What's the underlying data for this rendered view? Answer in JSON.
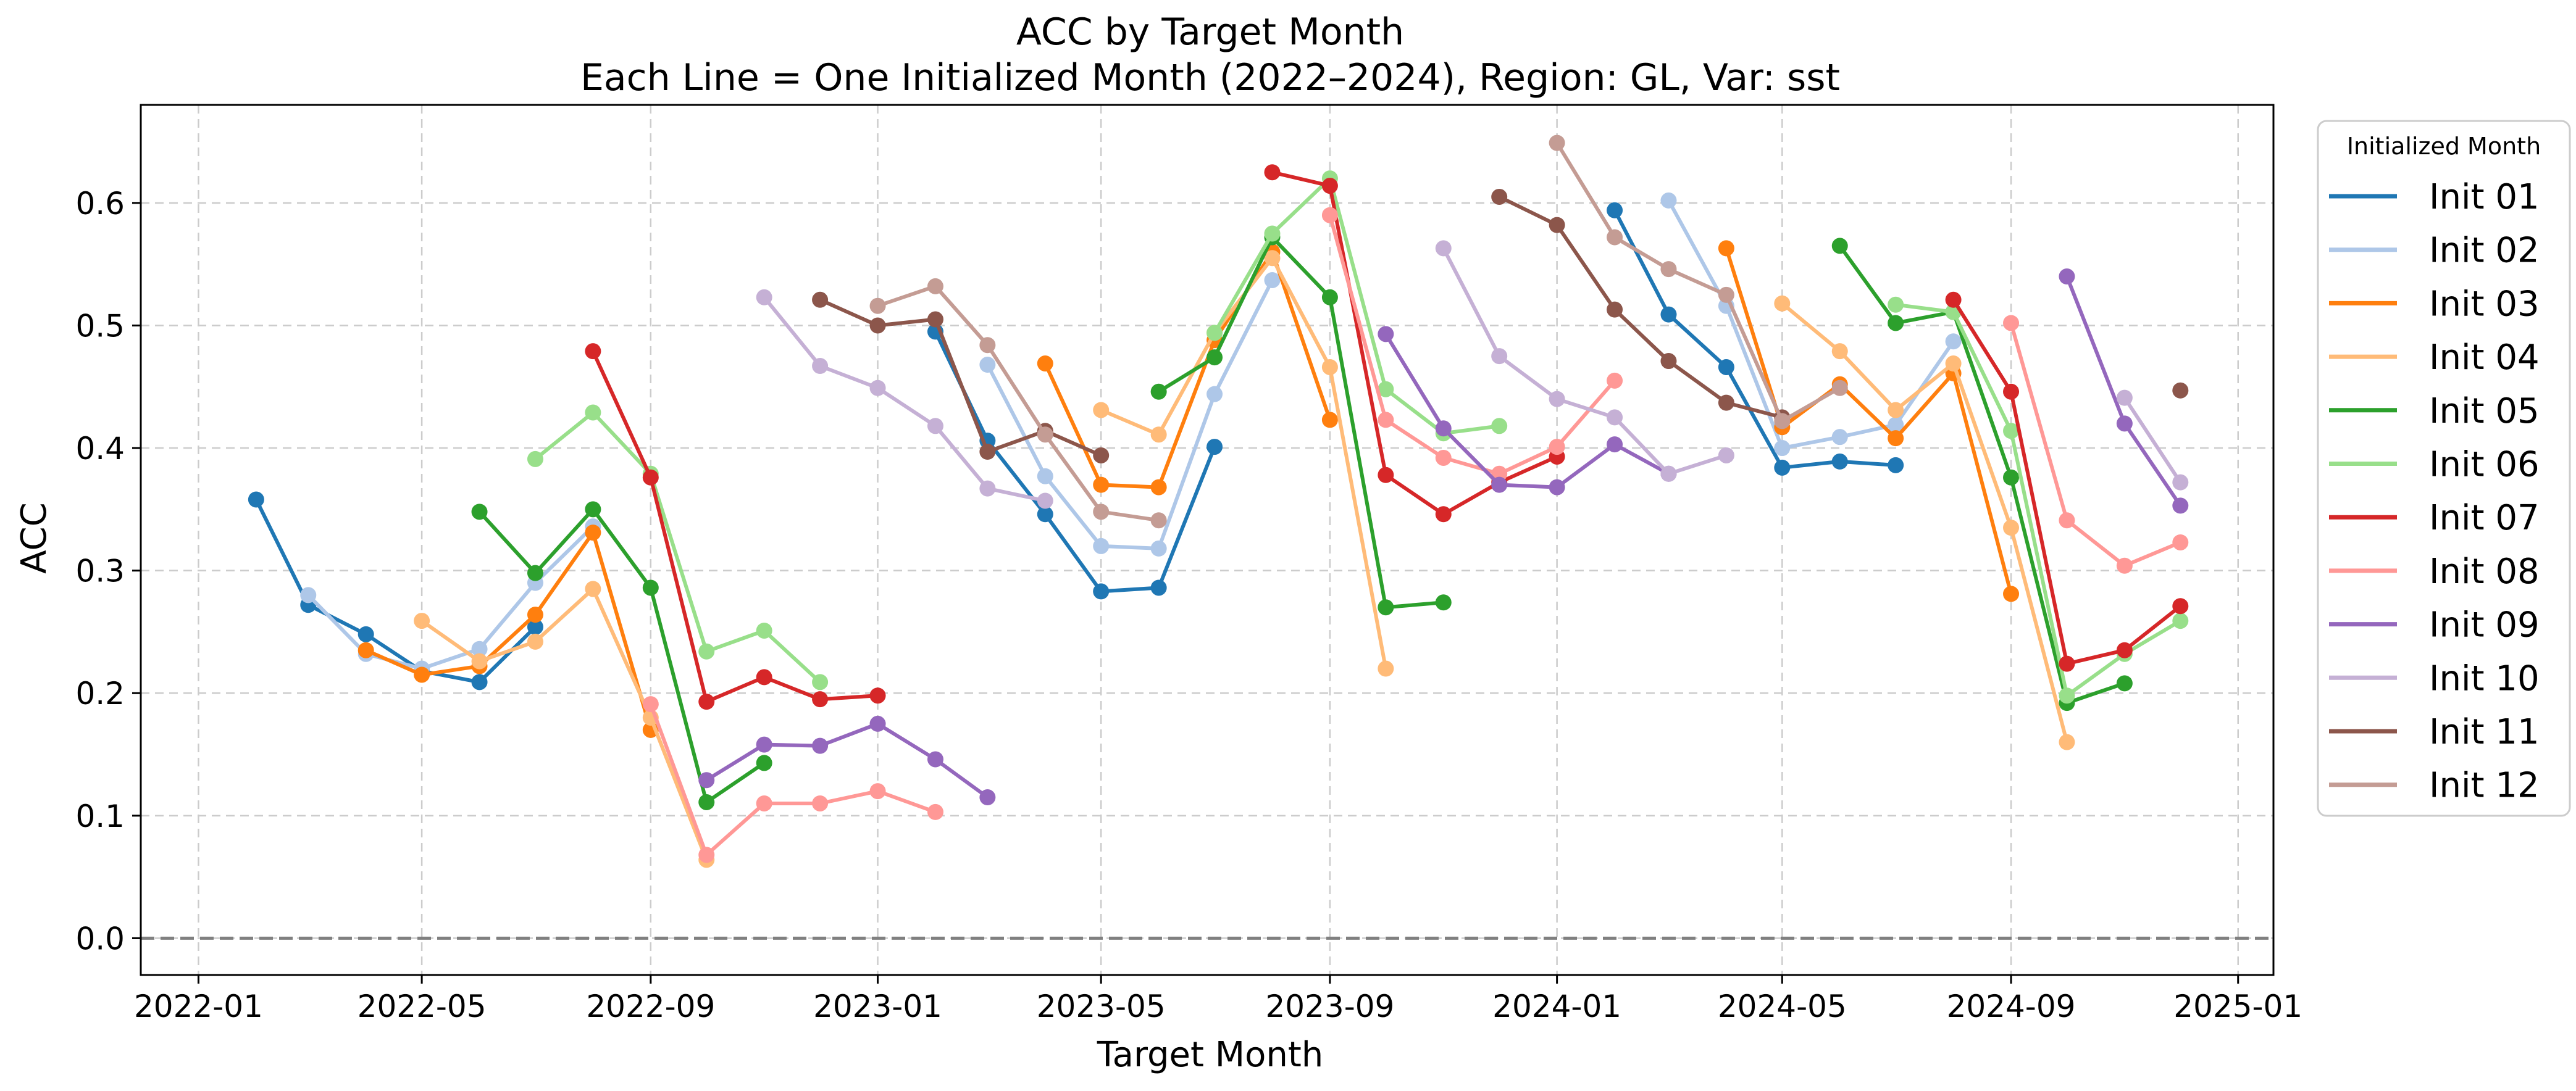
{
  "chart_data": {
    "type": "line",
    "title": "ACC by Target Month",
    "subtitle": "Each Line = One Initialized Month (2022–2024), Region: GL, Var: sst",
    "xlabel": "Target Month",
    "ylabel": "ACC",
    "xlim": [
      "2021-12-01",
      "2025-01-20"
    ],
    "ylim": [
      -0.03,
      0.68
    ],
    "xticks": [
      "2022-01",
      "2022-05",
      "2022-09",
      "2023-01",
      "2023-05",
      "2023-09",
      "2024-01",
      "2024-05",
      "2024-09",
      "2025-01"
    ],
    "yticks": [
      "0.0",
      "0.1",
      "0.2",
      "0.3",
      "0.4",
      "0.5",
      "0.6"
    ],
    "grid": true,
    "zero_line": true,
    "legend_title": "Initialized Month",
    "legend_position": "outside-right",
    "series": [
      {
        "name": "Init 01",
        "color": "#1f77b4",
        "segments": [
          {
            "x": [
              "2022-02",
              "2022-03",
              "2022-04",
              "2022-05",
              "2022-06",
              "2022-07"
            ],
            "y": [
              0.358,
              0.272,
              0.248,
              0.218,
              0.209,
              0.254
            ]
          },
          {
            "x": [
              "2023-02",
              "2023-03",
              "2023-04",
              "2023-05",
              "2023-06",
              "2023-07"
            ],
            "y": [
              0.495,
              0.406,
              0.346,
              0.283,
              0.286,
              0.401
            ]
          },
          {
            "x": [
              "2024-02",
              "2024-03",
              "2024-04",
              "2024-05",
              "2024-06",
              "2024-07"
            ],
            "y": [
              0.594,
              0.509,
              0.466,
              0.384,
              0.389,
              0.386
            ]
          }
        ]
      },
      {
        "name": "Init 02",
        "color": "#aec7e8",
        "segments": [
          {
            "x": [
              "2022-03",
              "2022-04",
              "2022-05",
              "2022-06",
              "2022-07",
              "2022-08"
            ],
            "y": [
              0.28,
              0.232,
              0.22,
              0.236,
              0.29,
              0.336
            ]
          },
          {
            "x": [
              "2023-03",
              "2023-04",
              "2023-05",
              "2023-06",
              "2023-07",
              "2023-08"
            ],
            "y": [
              0.468,
              0.377,
              0.32,
              0.318,
              0.444,
              0.537
            ]
          },
          {
            "x": [
              "2024-03",
              "2024-04",
              "2024-05",
              "2024-06",
              "2024-07",
              "2024-08"
            ],
            "y": [
              0.602,
              0.516,
              0.4,
              0.409,
              0.419,
              0.487
            ]
          }
        ]
      },
      {
        "name": "Init 03",
        "color": "#ff7f0e",
        "segments": [
          {
            "x": [
              "2022-04",
              "2022-05",
              "2022-06",
              "2022-07",
              "2022-08",
              "2022-09"
            ],
            "y": [
              0.235,
              0.215,
              0.222,
              0.264,
              0.331,
              0.17
            ]
          },
          {
            "x": [
              "2023-04",
              "2023-05",
              "2023-06",
              "2023-07",
              "2023-08",
              "2023-09"
            ],
            "y": [
              0.469,
              0.37,
              0.368,
              0.488,
              0.56,
              0.423
            ]
          },
          {
            "x": [
              "2024-04",
              "2024-05",
              "2024-06",
              "2024-07",
              "2024-08",
              "2024-09"
            ],
            "y": [
              0.563,
              0.417,
              0.452,
              0.408,
              0.461,
              0.281
            ]
          }
        ]
      },
      {
        "name": "Init 04",
        "color": "#ffbb78",
        "segments": [
          {
            "x": [
              "2022-05",
              "2022-06",
              "2022-07",
              "2022-08",
              "2022-09",
              "2022-10"
            ],
            "y": [
              0.259,
              0.226,
              0.242,
              0.285,
              0.18,
              0.064
            ]
          },
          {
            "x": [
              "2023-05",
              "2023-06",
              "2023-07",
              "2023-08",
              "2023-09",
              "2023-10"
            ],
            "y": [
              0.431,
              0.411,
              0.494,
              0.555,
              0.466,
              0.22
            ]
          },
          {
            "x": [
              "2024-05",
              "2024-06",
              "2024-07",
              "2024-08",
              "2024-09",
              "2024-10"
            ],
            "y": [
              0.518,
              0.479,
              0.431,
              0.469,
              0.335,
              0.16
            ]
          }
        ]
      },
      {
        "name": "Init 05",
        "color": "#2ca02c",
        "segments": [
          {
            "x": [
              "2022-06",
              "2022-07",
              "2022-08",
              "2022-09",
              "2022-10",
              "2022-11"
            ],
            "y": [
              0.348,
              0.298,
              0.35,
              0.286,
              0.111,
              0.143
            ]
          },
          {
            "x": [
              "2023-06",
              "2023-07",
              "2023-08",
              "2023-09",
              "2023-10",
              "2023-11"
            ],
            "y": [
              0.446,
              0.474,
              0.572,
              0.523,
              0.27,
              0.274
            ]
          },
          {
            "x": [
              "2024-06",
              "2024-07",
              "2024-08",
              "2024-09",
              "2024-10",
              "2024-11"
            ],
            "y": [
              0.565,
              0.502,
              0.511,
              0.376,
              0.192,
              0.208
            ]
          }
        ]
      },
      {
        "name": "Init 06",
        "color": "#98df8a",
        "segments": [
          {
            "x": [
              "2022-07",
              "2022-08",
              "2022-09",
              "2022-10",
              "2022-11",
              "2022-12"
            ],
            "y": [
              0.391,
              0.429,
              0.379,
              0.234,
              0.251,
              0.209
            ]
          },
          {
            "x": [
              "2023-07",
              "2023-08",
              "2023-09",
              "2023-10",
              "2023-11",
              "2023-12"
            ],
            "y": [
              0.494,
              0.575,
              0.62,
              0.448,
              0.412,
              0.418
            ]
          },
          {
            "x": [
              "2024-07",
              "2024-08",
              "2024-09",
              "2024-10",
              "2024-11",
              "2024-12"
            ],
            "y": [
              0.517,
              0.511,
              0.414,
              0.198,
              0.232,
              0.259
            ]
          }
        ]
      },
      {
        "name": "Init 07",
        "color": "#d62728",
        "segments": [
          {
            "x": [
              "2022-08",
              "2022-09",
              "2022-10",
              "2022-11",
              "2022-12",
              "2023-01"
            ],
            "y": [
              0.479,
              0.376,
              0.193,
              0.213,
              0.195,
              0.198
            ]
          },
          {
            "x": [
              "2023-08",
              "2023-09",
              "2023-10",
              "2023-11",
              "2023-12",
              "2024-01"
            ],
            "y": [
              0.625,
              0.614,
              0.378,
              0.346,
              0.372,
              0.393
            ]
          },
          {
            "x": [
              "2024-08",
              "2024-09",
              "2024-10",
              "2024-11",
              "2024-12"
            ],
            "y": [
              0.521,
              0.446,
              0.224,
              0.235,
              0.271
            ]
          }
        ]
      },
      {
        "name": "Init 08",
        "color": "#ff9896",
        "segments": [
          {
            "x": [
              "2022-09",
              "2022-10",
              "2022-11",
              "2022-12",
              "2023-01",
              "2023-02"
            ],
            "y": [
              0.191,
              0.068,
              0.11,
              0.11,
              0.12,
              0.103
            ]
          },
          {
            "x": [
              "2023-09",
              "2023-10",
              "2023-11",
              "2023-12",
              "2024-01",
              "2024-02"
            ],
            "y": [
              0.59,
              0.423,
              0.392,
              0.379,
              0.401,
              0.455
            ]
          },
          {
            "x": [
              "2024-09",
              "2024-10",
              "2024-11",
              "2024-12"
            ],
            "y": [
              0.502,
              0.341,
              0.304,
              0.323
            ]
          }
        ]
      },
      {
        "name": "Init 09",
        "color": "#9467bd",
        "segments": [
          {
            "x": [
              "2022-10",
              "2022-11",
              "2022-12",
              "2023-01",
              "2023-02",
              "2023-03"
            ],
            "y": [
              0.129,
              0.158,
              0.157,
              0.175,
              0.146,
              0.115
            ]
          },
          {
            "x": [
              "2023-10",
              "2023-11",
              "2023-12",
              "2024-01",
              "2024-02",
              "2024-03"
            ],
            "y": [
              0.493,
              0.416,
              0.37,
              0.368,
              0.403,
              0.379
            ]
          },
          {
            "x": [
              "2024-10",
              "2024-11",
              "2024-12"
            ],
            "y": [
              0.54,
              0.42,
              0.353
            ]
          }
        ]
      },
      {
        "name": "Init 10",
        "color": "#c5b0d5",
        "segments": [
          {
            "x": [
              "2022-11",
              "2022-12",
              "2023-01",
              "2023-02",
              "2023-03",
              "2023-04"
            ],
            "y": [
              0.523,
              0.467,
              0.449,
              0.418,
              0.367,
              0.357
            ]
          },
          {
            "x": [
              "2023-11",
              "2023-12",
              "2024-01",
              "2024-02",
              "2024-03",
              "2024-04"
            ],
            "y": [
              0.563,
              0.475,
              0.44,
              0.425,
              0.379,
              0.394
            ]
          },
          {
            "x": [
              "2024-11",
              "2024-12"
            ],
            "y": [
              0.441,
              0.372
            ]
          }
        ]
      },
      {
        "name": "Init 11",
        "color": "#8c564b",
        "segments": [
          {
            "x": [
              "2022-12",
              "2023-01",
              "2023-02",
              "2023-03",
              "2023-04",
              "2023-05"
            ],
            "y": [
              0.521,
              0.5,
              0.505,
              0.397,
              0.414,
              0.394
            ]
          },
          {
            "x": [
              "2023-12",
              "2024-01",
              "2024-02",
              "2024-03",
              "2024-04",
              "2024-05"
            ],
            "y": [
              0.605,
              0.582,
              0.513,
              0.471,
              0.437,
              0.425
            ]
          },
          {
            "x": [
              "2024-12"
            ],
            "y": [
              0.447
            ]
          }
        ]
      },
      {
        "name": "Init 12",
        "color": "#c49c94",
        "segments": [
          {
            "x": [
              "2023-01",
              "2023-02",
              "2023-03",
              "2023-04",
              "2023-05",
              "2023-06"
            ],
            "y": [
              0.516,
              0.532,
              0.484,
              0.411,
              0.348,
              0.341
            ]
          },
          {
            "x": [
              "2024-01",
              "2024-02",
              "2024-03",
              "2024-04",
              "2024-05",
              "2024-06"
            ],
            "y": [
              0.649,
              0.572,
              0.546,
              0.525,
              0.422,
              0.449
            ]
          }
        ]
      }
    ]
  }
}
